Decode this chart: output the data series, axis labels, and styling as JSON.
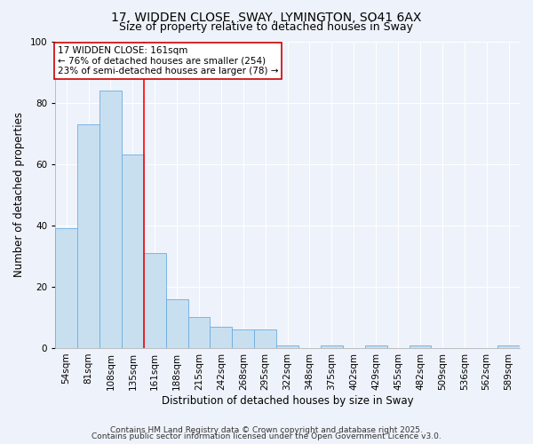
{
  "title_line1": "17, WIDDEN CLOSE, SWAY, LYMINGTON, SO41 6AX",
  "title_line2": "Size of property relative to detached houses in Sway",
  "bar_labels": [
    "54sqm",
    "81sqm",
    "108sqm",
    "135sqm",
    "161sqm",
    "188sqm",
    "215sqm",
    "242sqm",
    "268sqm",
    "295sqm",
    "322sqm",
    "348sqm",
    "375sqm",
    "402sqm",
    "429sqm",
    "455sqm",
    "482sqm",
    "509sqm",
    "536sqm",
    "562sqm",
    "589sqm"
  ],
  "bar_values": [
    39,
    73,
    84,
    63,
    31,
    16,
    10,
    7,
    6,
    6,
    1,
    0,
    1,
    0,
    1,
    0,
    1,
    0,
    0,
    0,
    1
  ],
  "bar_color": "#c8dff0",
  "bar_edge_color": "#6aade0",
  "red_line_x": 3.5,
  "ylabel": "Number of detached properties",
  "xlabel": "Distribution of detached houses by size in Sway",
  "ylim": [
    0,
    100
  ],
  "yticks": [
    0,
    20,
    40,
    60,
    80,
    100
  ],
  "annotation_title": "17 WIDDEN CLOSE: 161sqm",
  "annotation_line1": "← 76% of detached houses are smaller (254)",
  "annotation_line2": "23% of semi-detached houses are larger (78) →",
  "annotation_box_color": "#ffffff",
  "annotation_box_edge": "#cc0000",
  "footer_line1": "Contains HM Land Registry data © Crown copyright and database right 2025.",
  "footer_line2": "Contains public sector information licensed under the Open Government Licence v3.0.",
  "bg_color": "#eef2fa",
  "grid_color": "#ffffff",
  "title_fontsize": 10,
  "subtitle_fontsize": 9,
  "axis_label_fontsize": 8.5,
  "tick_fontsize": 7.5,
  "annotation_fontsize": 7.5,
  "footer_fontsize": 6.5
}
